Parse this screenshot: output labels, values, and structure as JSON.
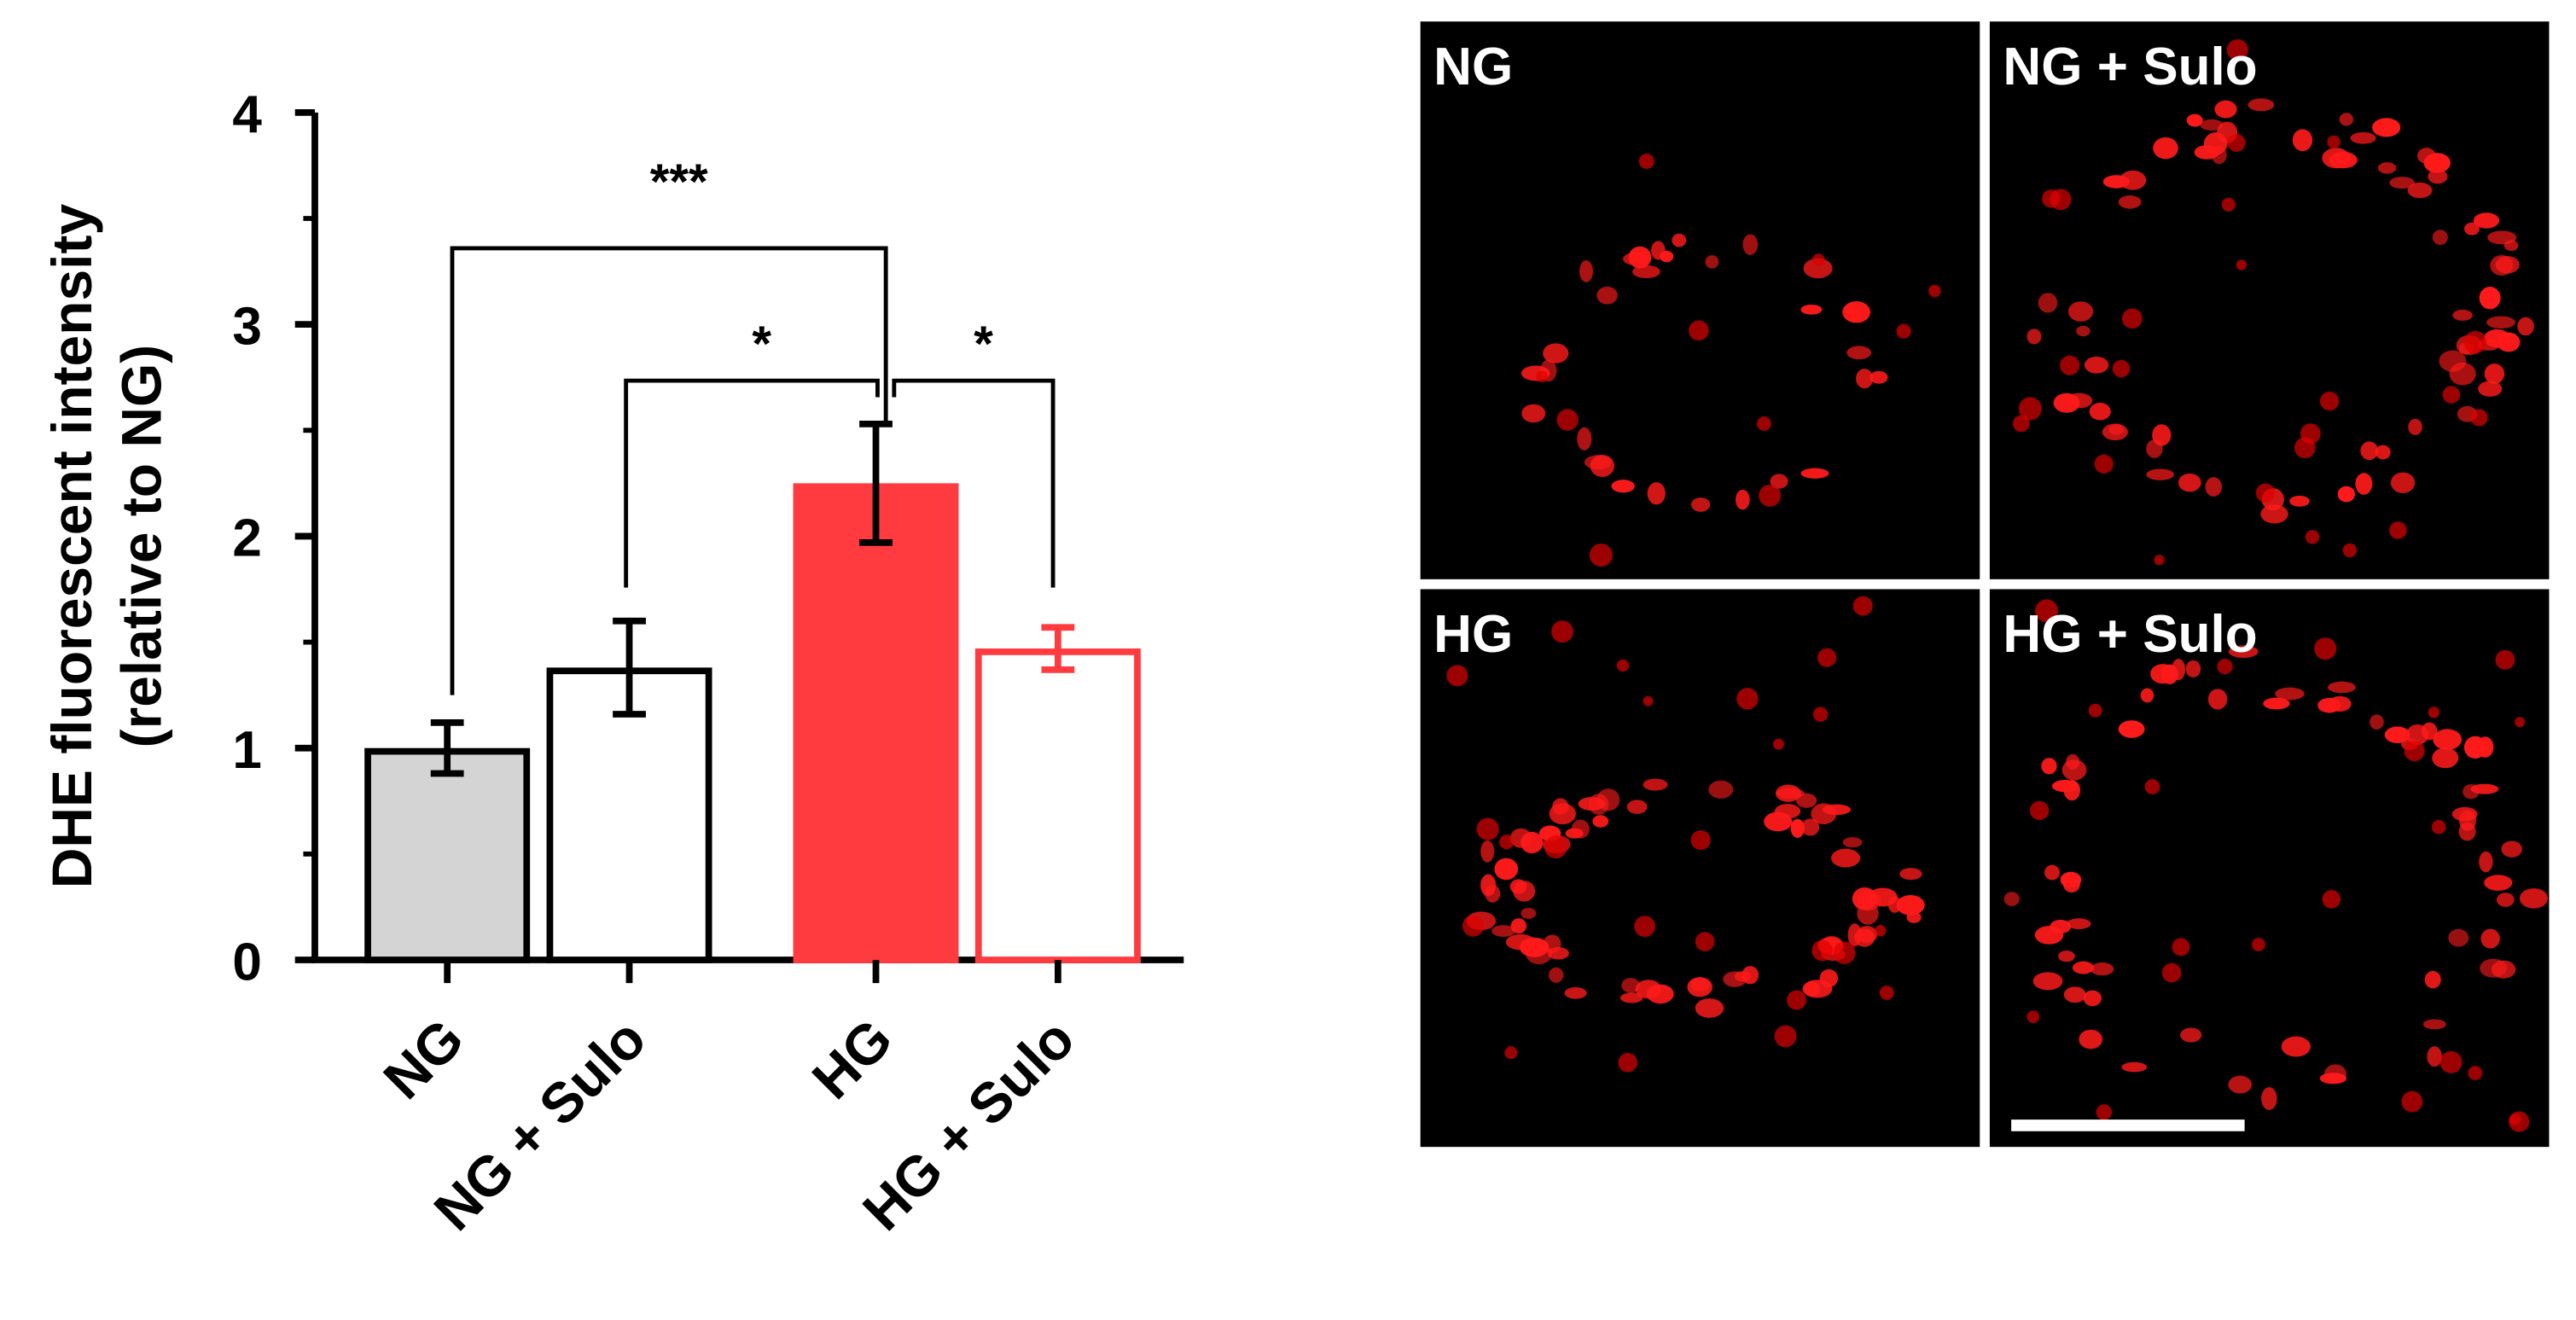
{
  "chart_data": {
    "type": "bar",
    "ylabel": [
      "DHE fluorescent intensity",
      "(relative to NG)"
    ],
    "categories": [
      "NG",
      "NG + Sulo",
      "HG",
      "HG + Sulo"
    ],
    "values": [
      1.0,
      1.38,
      2.25,
      1.47
    ],
    "errors": [
      0.12,
      0.22,
      0.28,
      0.1
    ],
    "fill_colors": [
      "#d4d4d4",
      "#ffffff",
      "#ff3b3f",
      "#ffffff"
    ],
    "edge_colors": [
      "#000000",
      "#000000",
      "#ff3b3f",
      "#ff3b3f"
    ],
    "ylim": [
      0,
      4
    ],
    "yticks": [
      0,
      1,
      2,
      3,
      4
    ],
    "yminorticks": [
      0.5,
      1.5,
      2.5,
      3.5
    ],
    "annotations": [
      "***",
      "*",
      "*"
    ]
  },
  "micrographs": {
    "panels": [
      {
        "label": "NG"
      },
      {
        "label": "NG + Sulo"
      },
      {
        "label": "HG"
      },
      {
        "label": "HG + Sulo"
      }
    ]
  }
}
